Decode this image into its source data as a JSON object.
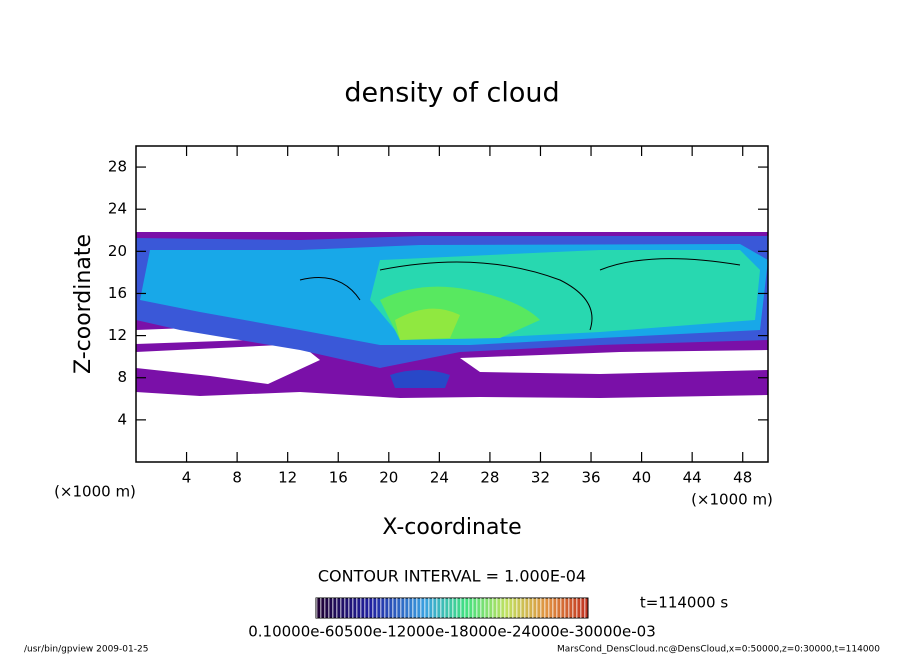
{
  "chart_data": {
    "type": "contour",
    "title": "density of cloud",
    "x_label": "X-coordinate",
    "y_label": "Z-coordinate",
    "x_unit_label": "(×1000 m)",
    "y_unit_label": "(×1000 m)",
    "xlim": [
      0,
      50
    ],
    "xticks": [
      4,
      8,
      12,
      16,
      20,
      24,
      28,
      32,
      36,
      40,
      44,
      48
    ],
    "ylim": [
      0,
      30
    ],
    "yticks": [
      4,
      8,
      12,
      16,
      20,
      24,
      28
    ],
    "contour_interval": "CONTOUR INTERVAL = 1.000E-04",
    "time_label": "t=114000 s",
    "colorbar_labels": "0.10000e-60500e-12000e-18000e-24000e-30000e-03",
    "footer_left": "/usr/bin/gpview  2009-01-25",
    "footer_right": "MarsCond_DensCloud.nc@DensCloud,x=0:50000,z=0:30000,t=114000"
  }
}
